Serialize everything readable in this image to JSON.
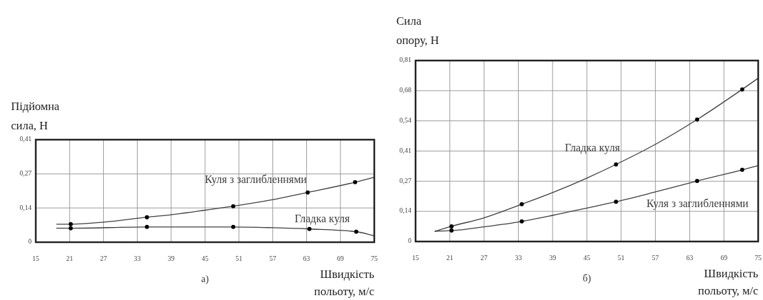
{
  "chart_data": [
    {
      "type": "line",
      "ylabel": "Підйомна сила, Н",
      "xlabel": "Швидкість польоту, м/с",
      "annotations": [
        "а)"
      ],
      "xlim": [
        15,
        75
      ],
      "xticks": [
        15,
        21,
        27,
        33,
        39,
        45,
        51,
        57,
        63,
        69,
        75
      ],
      "ylim": [
        0,
        0.41
      ],
      "yticks": [
        0,
        {
          "value": 0.137,
          "label": "0,14"
        },
        {
          "value": 0.273,
          "label": "0,27"
        },
        {
          "value": 0.41,
          "label": "0,41"
        }
      ],
      "grid": true,
      "series": [
        {
          "name": "Куля з заглибленнями",
          "type": "line",
          "color": "#3c3c3c",
          "marker": "none",
          "x": [
            18.7,
            21.2,
            27,
            34.7,
            39,
            45,
            50,
            57,
            63.2,
            71.6,
            75
          ],
          "values": [
            0.072,
            0.072,
            0.08,
            0.1,
            0.11,
            0.128,
            0.144,
            0.17,
            0.199,
            0.24,
            0.26
          ]
        },
        {
          "type": "scatter",
          "color": "#000000",
          "marker": "circle",
          "x": [
            21.2,
            34.7,
            50,
            63.2,
            71.6
          ],
          "values": [
            0.072,
            0.1,
            0.144,
            0.199,
            0.24
          ]
        },
        {
          "name": "Гладка куля",
          "type": "line",
          "color": "#3c3c3c",
          "marker": "none",
          "x": [
            18.7,
            21.2,
            34.7,
            50,
            57,
            63.5,
            71.8,
            75
          ],
          "values": [
            0.056,
            0.056,
            0.061,
            0.061,
            0.058,
            0.053,
            0.042,
            0.025
          ]
        },
        {
          "type": "scatter",
          "color": "#000000",
          "marker": "circle",
          "x": [
            21.2,
            34.7,
            50,
            63.5,
            71.8
          ],
          "values": [
            0.056,
            0.061,
            0.061,
            0.053,
            0.042
          ]
        }
      ]
    },
    {
      "type": "line",
      "ylabel": "Сила опору, Н",
      "xlabel": "Швидкість польоту, м/с",
      "annotations": [
        "б)"
      ],
      "xlim": [
        15,
        75
      ],
      "xticks": [
        15,
        21,
        27,
        33,
        39,
        45,
        51,
        57,
        63,
        69,
        75
      ],
      "ylim": [
        0,
        0.81
      ],
      "yticks": [
        0,
        {
          "value": 0.135,
          "label": "0,14"
        },
        {
          "value": 0.27,
          "label": "0,27"
        },
        {
          "value": 0.405,
          "label": "0,41"
        },
        {
          "value": 0.54,
          "label": "0,54"
        },
        {
          "value": 0.675,
          "label": "0,68"
        },
        {
          "value": 0.81,
          "label": "0,81"
        }
      ],
      "grid": true,
      "series": [
        {
          "name": "Гладка куля",
          "type": "line",
          "color": "#3c3c3c",
          "marker": "none",
          "x": [
            18.4,
            21.3,
            27,
            33.6,
            39,
            45,
            50.1,
            57,
            64.3,
            72.2,
            75
          ],
          "values": [
            0.046,
            0.068,
            0.106,
            0.167,
            0.219,
            0.284,
            0.345,
            0.435,
            0.546,
            0.681,
            0.731
          ]
        },
        {
          "type": "scatter",
          "color": "#000000",
          "marker": "circle",
          "x": [
            21.3,
            33.6,
            50.1,
            64.3,
            72.2
          ],
          "values": [
            0.068,
            0.167,
            0.345,
            0.546,
            0.681
          ]
        },
        {
          "name": "Куля з заглибленнями",
          "type": "line",
          "color": "#3c3c3c",
          "marker": "none",
          "x": [
            18.4,
            21.3,
            27,
            33.6,
            39,
            45,
            50.1,
            57,
            64.3,
            72.2,
            75
          ],
          "values": [
            0.046,
            0.049,
            0.066,
            0.09,
            0.117,
            0.15,
            0.178,
            0.222,
            0.271,
            0.321,
            0.34
          ]
        },
        {
          "type": "scatter",
          "color": "#000000",
          "marker": "circle",
          "x": [
            21.3,
            33.6,
            50.1,
            64.3,
            72.2
          ],
          "values": [
            0.049,
            0.09,
            0.178,
            0.271,
            0.321
          ]
        }
      ]
    }
  ]
}
